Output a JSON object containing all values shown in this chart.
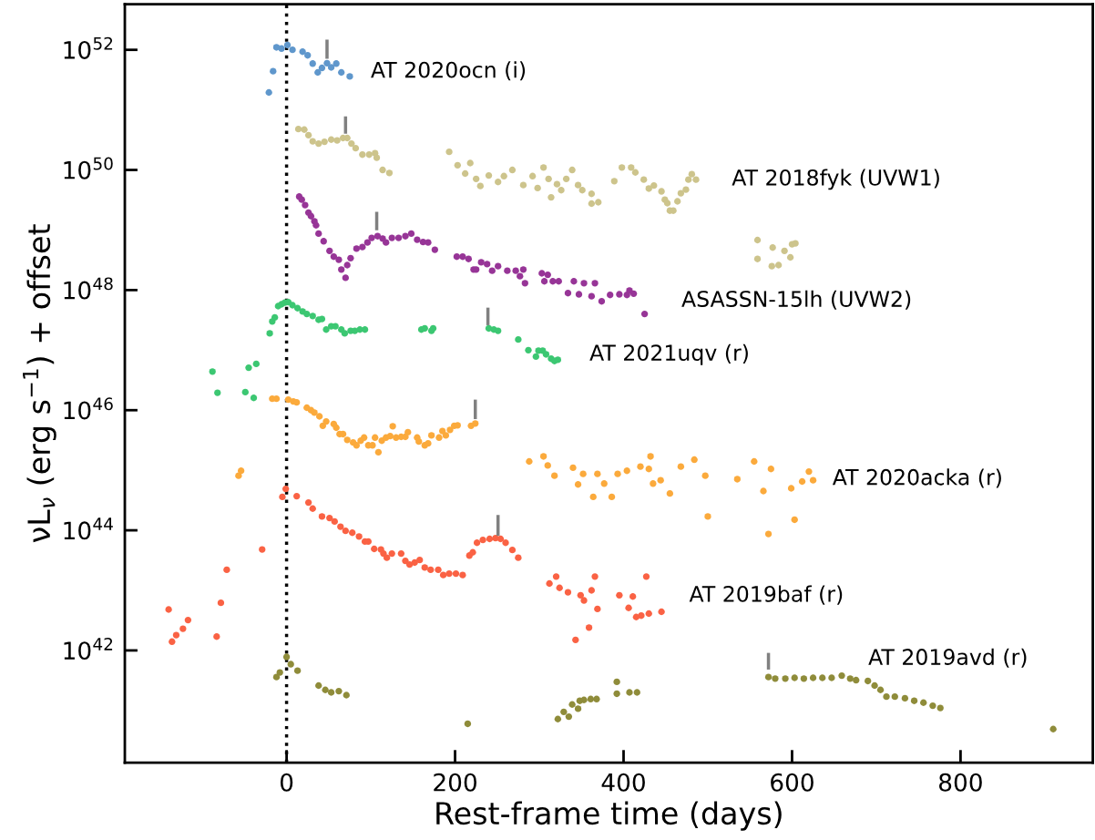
{
  "chart_data": {
    "type": "scatter",
    "xlabel": "Rest-frame time (days)",
    "ylabel": "νL$_{ν}$ (erg s$^{−1}$) + offset",
    "log": "y",
    "marker": "circle",
    "grid": false,
    "xlim": [
      -192,
      957
    ],
    "xticks": [
      0,
      200,
      400,
      600,
      800
    ],
    "ylim": [
      1.35e+40,
      5.75e+52
    ],
    "yticks": [
      {
        "value": 1e+42,
        "label": "10$^{42}$"
      },
      {
        "value": 1e+44,
        "label": "10$^{44}$"
      },
      {
        "value": 1e+46,
        "label": "10$^{46}$"
      },
      {
        "value": 1e+48,
        "label": "10$^{48}$"
      },
      {
        "value": 1e+50,
        "label": "10$^{50}$"
      },
      {
        "value": 1e+52,
        "label": "10$^{52}$"
      }
    ],
    "ref_lines": [
      {
        "axis": "x",
        "value": 0,
        "color": "#000000",
        "line_style": "dotted"
      }
    ],
    "series": [
      {
        "name": "AT 2020ocn (i)",
        "color": "#5f97cc",
        "x": [
          -21,
          -16,
          -12,
          -6,
          1,
          7,
          19,
          25,
          31,
          37,
          42,
          48,
          53,
          59,
          65,
          75
        ],
        "values": [
          1.95e+51,
          4.4e+51,
          1.1e+52,
          1.05e+52,
          1.2e+52,
          1e+52,
          9.3e+51,
          8.1e+51,
          5.9e+51,
          4.2e+51,
          5e+51,
          6e+51,
          5.1e+51,
          5.9e+51,
          4.2e+51,
          3.6e+51
        ]
      },
      {
        "name": "AT 2018fyk (UVW1)",
        "color": "#cdc48c",
        "x": [
          14,
          21,
          26,
          31,
          38,
          45,
          53,
          60,
          67,
          72,
          77,
          82,
          90,
          98,
          105,
          107,
          114,
          122,
          193,
          203,
          212,
          218,
          225,
          230,
          240,
          251,
          258,
          268,
          281,
          292,
          298,
          305,
          311,
          314,
          321,
          326,
          332,
          339,
          346,
          351,
          362,
          362,
          370,
          389,
          398,
          409,
          414,
          424,
          430,
          436,
          445,
          449,
          452,
          455,
          459,
          464,
          468,
          474,
          477,
          481,
          486,
          559,
          559,
          577,
          576,
          584,
          591,
          598,
          600,
          604
        ],
        "values": [
          4.8e+50,
          4.7e+50,
          3.8e+50,
          3e+50,
          2.75e+50,
          2.95e+50,
          3.2e+50,
          3.1e+50,
          3.4e+50,
          3.4e+50,
          2.75e+50,
          2.3e+50,
          1.8e+50,
          1.8e+50,
          1.9e+50,
          1.6e+50,
          1e+50,
          8.9e+49,
          2e+50,
          1.2e+50,
          8.7e+49,
          1.3e+50,
          7.1e+49,
          5.4e+49,
          8.1e+49,
          6.3e+49,
          7.9e+49,
          1e+50,
          5.6e+49,
          7.9e+49,
          5e+49,
          1.1e+50,
          7.1e+49,
          3.5e+49,
          5.8e+49,
          4.6e+49,
          7.1e+49,
          1e+50,
          5.6e+49,
          4.6e+49,
          4e+49,
          2.75e+49,
          2.9e+49,
          6.5e+49,
          1.1e+50,
          1.1e+50,
          9.1e+49,
          6.9e+49,
          4.9e+49,
          5.5e+49,
          4.4e+49,
          3.2e+49,
          2.8e+49,
          2.1e+49,
          2.1e+49,
          3e+49,
          4.1e+49,
          4.7e+49,
          6.9e+49,
          8.5e+49,
          6.9e+49,
          6.8e+48,
          3.3e+48,
          5.1e+48,
          2.5e+48,
          2.6e+48,
          4.5e+48,
          3.5e+48,
          5.8e+48,
          6e+48
        ]
      },
      {
        "name": "ASASSN-15lh (UVW2)",
        "color": "#973597",
        "x": [
          15,
          18,
          22,
          26,
          29,
          33,
          35,
          38,
          44,
          51,
          56,
          62,
          65,
          70,
          72,
          76,
          83,
          90,
          96,
          101,
          108,
          114,
          118,
          125,
          133,
          141,
          148,
          155,
          162,
          168,
          176,
          202,
          209,
          216,
          222,
          225,
          231,
          238,
          244,
          251,
          262,
          272,
          277,
          281,
          283,
          303,
          306,
          310,
          316,
          323,
          334,
          341,
          347,
          353,
          362,
          366,
          374,
          384,
          395,
          404,
          407,
          412,
          425
        ],
        "values": [
          3.6e+49,
          3.2e+49,
          2.6e+49,
          1.95e+49,
          1.7e+49,
          1.4e+49,
          1.2e+49,
          8.7e+48,
          6.5e+48,
          4.5e+48,
          3.6e+48,
          3.2e+48,
          2.2e+48,
          1.6e+48,
          2.6e+48,
          3.4e+48,
          4.9e+48,
          5.2e+48,
          6.2e+48,
          7.4e+48,
          7.9e+48,
          7.2e+48,
          6.2e+48,
          7.4e+48,
          7.4e+48,
          7.9e+48,
          8.7e+48,
          6.9e+48,
          6.3e+48,
          6.2e+48,
          4.7e+48,
          3.6e+48,
          3.6e+48,
          3.3e+48,
          2.2e+48,
          2.2e+48,
          2.9e+48,
          2.7e+48,
          2.1e+48,
          2.5e+48,
          2.1e+48,
          2.1e+48,
          1.7e+48,
          2.2e+48,
          1.3e+48,
          1.9e+48,
          1.4e+48,
          1.8e+48,
          1.4e+48,
          1.4e+48,
          8.9e+47,
          1.4e+48,
          8.5e+47,
          1.3e+48,
          7.9e+47,
          1.3e+48,
          6.5e+47,
          8.3e+47,
          8.5e+47,
          8.3e+47,
          9.8e+47,
          8.7e+47,
          4e+47
        ]
      },
      {
        "name": "AT 2021uqv (r)",
        "color": "#3cc772",
        "x": [
          -88,
          -82,
          -49,
          -45,
          -39,
          -36,
          -20,
          -17,
          -14,
          -10,
          -6,
          -2,
          2,
          7,
          13,
          19,
          24,
          31,
          38,
          42,
          47,
          53,
          58,
          65,
          69,
          76,
          81,
          87,
          93,
          160,
          164,
          172,
          174,
          240,
          246,
          251,
          275,
          287,
          296,
          299,
          304,
          308,
          314,
          318,
          322
        ],
        "values": [
          4.4e+46,
          1.95e+46,
          2e+46,
          5.1e+46,
          1.6e+46,
          5.9e+46,
          1.9e+47,
          3e+47,
          3.5e+47,
          5.4e+47,
          5.8e+47,
          6.2e+47,
          6.3e+47,
          5.6e+47,
          5e+47,
          4.4e+47,
          4e+47,
          3.7e+47,
          3.2e+47,
          3.3e+47,
          2.2e+47,
          2.5e+47,
          2.5e+47,
          2.2e+47,
          1.9e+47,
          2.1e+47,
          2.1e+47,
          2.2e+47,
          2.2e+47,
          2.2e+47,
          2.3e+47,
          2.1e+47,
          2.3e+47,
          2.3e+47,
          2.2e+47,
          2.1e+47,
          1.5e+47,
          1e+47,
          7.8e+46,
          9.8e+46,
          9.8e+46,
          8.5e+46,
          7.2e+46,
          6.6e+46,
          6.9e+46
        ]
      },
      {
        "name": "AT 2020acka (r)",
        "color": "#fbaa3c",
        "x": [
          -57,
          -54,
          -17,
          -12,
          2,
          8,
          12,
          24,
          29,
          33,
          39,
          43,
          47,
          56,
          59,
          63,
          67,
          72,
          79,
          83,
          88,
          92,
          97,
          102,
          105,
          109,
          113,
          118,
          123,
          126,
          130,
          136,
          141,
          144,
          155,
          157,
          164,
          168,
          172,
          181,
          185,
          189,
          194,
          199,
          203,
          219,
          224,
          288,
          305,
          310,
          318,
          340,
          346,
          352,
          364,
          369,
          377,
          386,
          393,
          404,
          420,
          430,
          432,
          435,
          444,
          455,
          468,
          484,
          497,
          500,
          535,
          555,
          566,
          572,
          575,
          599,
          603,
          612,
          620,
          625
        ],
        "values": [
          8.1e+44,
          9.8e+44,
          1.55e+46,
          1.55e+46,
          1.5e+46,
          1.4e+46,
          1.35e+46,
          1.1e+46,
          1e+46,
          9.1e+45,
          7.9e+45,
          5.5e+45,
          6.5e+45,
          5.9e+45,
          5.1e+45,
          4e+45,
          4e+45,
          3.2e+45,
          2.9e+45,
          2.6e+45,
          3.1e+45,
          3.5e+45,
          2.6e+45,
          2.6e+45,
          3.5e+45,
          2e+45,
          3.1e+45,
          3.5e+45,
          3.7e+45,
          5.4e+45,
          3.5e+45,
          3.6e+45,
          3.6e+45,
          4.3e+45,
          3.5e+45,
          3e+45,
          2.6e+45,
          2.8e+45,
          3.8e+45,
          3.5e+45,
          4.5e+45,
          3.8e+45,
          4.7e+45,
          5.5e+45,
          5.6e+45,
          5.5e+45,
          6e+45,
          1.4e+45,
          1.7e+45,
          1.2e+45,
          8.1e+44,
          1.1e+45,
          5.8e+44,
          8.7e+44,
          3.6e+44,
          8.7e+44,
          6e+44,
          3.6e+44,
          8.7e+44,
          9.8e+44,
          1.15e+45,
          1.05e+45,
          1.7e+45,
          6e+44,
          6.8e+44,
          4.1e+44,
          1.15e+45,
          1.5e+45,
          8.1e+44,
          1.7e+44,
          7.1e+44,
          1.4e+45,
          4.5e+44,
          8.7e+43,
          1.05e+45,
          5e+44,
          1.5e+44,
          6.5e+44,
          9.5e+44,
          6.8e+44
        ]
      },
      {
        "name": "AT 2019baf (r)",
        "color": "#fa6244",
        "x": [
          -140,
          -136,
          -131,
          -123,
          -117,
          -83,
          -78,
          -71,
          -29,
          -5,
          -1,
          12,
          26,
          31,
          42,
          51,
          57,
          64,
          70,
          78,
          86,
          93,
          97,
          104,
          112,
          115,
          119,
          125,
          136,
          141,
          146,
          152,
          158,
          164,
          171,
          180,
          186,
          193,
          201,
          209,
          217,
          221,
          226,
          233,
          241,
          248,
          254,
          260,
          268,
          275,
          312,
          320,
          324,
          334,
          343,
          349,
          353,
          359,
          362,
          366,
          369,
          395,
          406,
          411,
          415,
          421,
          427,
          430,
          445
        ],
        "values": [
          4.8e+42,
          1.4e+42,
          1.8e+42,
          2.3e+42,
          3.2e+42,
          1.7e+42,
          6.2e+42,
          2.2e+43,
          4.8e+43,
          3.6e+44,
          4.9e+44,
          3.7e+44,
          2.9e+44,
          2.3e+44,
          1.7e+44,
          1.6e+44,
          1.4e+44,
          1.15e+44,
          9.8e+43,
          9.1e+43,
          7.9e+43,
          6.5e+43,
          6.5e+43,
          4.9e+43,
          4.8e+43,
          4.1e+43,
          3.5e+43,
          4.1e+43,
          4.1e+43,
          3.1e+43,
          2.7e+43,
          2.9e+43,
          3.2e+43,
          2.4e+43,
          2.2e+43,
          2.2e+43,
          1.8e+43,
          1.9e+43,
          1.9e+43,
          1.8e+43,
          3.8e+43,
          4.3e+43,
          6.2e+43,
          6.9e+43,
          7.2e+43,
          7.4e+43,
          7.2e+43,
          6.2e+43,
          4.7e+43,
          3.5e+43,
          1.3e+43,
          1.7e+43,
          1.1e+43,
          9.3e+42,
          1.5e+42,
          8.3e+42,
          6.8e+42,
          2.4e+42,
          1e+43,
          1.7e+43,
          4.9e+42,
          8.3e+42,
          5.1e+42,
          7.9e+42,
          3.6e+42,
          3.8e+42,
          1.7e+43,
          4.1e+42,
          4.4e+42
        ]
      },
      {
        "name": "AT 2019avd (r)",
        "color": "#8f8c3a",
        "x": [
          -12,
          -8,
          0,
          5,
          13,
          38,
          46,
          53,
          62,
          71,
          215,
          322,
          329,
          335,
          339,
          346,
          348,
          353,
          361,
          368,
          392,
          392,
          407,
          416,
          572,
          580,
          592,
          603,
          614,
          625,
          636,
          647,
          659,
          669,
          676,
          690,
          698,
          705,
          712,
          722,
          734,
          745,
          756,
          767,
          776,
          910
        ],
        "values": [
          3.6e+41,
          4.3e+41,
          7.8e+41,
          5.9e+41,
          4.6e+41,
          2.6e+41,
          2.2e+41,
          2e+41,
          2.1e+41,
          1.8e+41,
          6e+40,
          7.2e+40,
          9.5e+40,
          7.9e+40,
          1.26e+41,
          1.07e+41,
          1.45e+41,
          1.5e+41,
          1.55e+41,
          1.55e+41,
          3e+41,
          1.9e+41,
          2e+41,
          2e+41,
          3.6e+41,
          3.4e+41,
          3.4e+41,
          3.5e+41,
          3.4e+41,
          3.5e+41,
          3.5e+41,
          3.5e+41,
          3.8e+41,
          3.4e+41,
          3.2e+41,
          3.1e+41,
          2.6e+41,
          2.2e+41,
          1.7e+41,
          1.7e+41,
          1.6e+41,
          1.45e+41,
          1.35e+41,
          1.2e+41,
          1.1e+41,
          4.9e+40
        ]
      },
      {
        "type": "bar",
        "color": "#808080",
        "x": [
          48,
          70,
          107,
          224,
          239,
          251,
          572
        ],
        "base": [
          7.1e+51,
          4e+50,
          9.9e+48,
          7.1e+45,
          2.6e+47,
          8.1e+43,
          4.8e+41
        ],
        "values": [
          7.7e+51,
          3.8e+50,
          1.01e+49,
          7.9e+45,
          2.5e+47,
          9.9e+43,
          4.3e+41
        ]
      }
    ]
  }
}
